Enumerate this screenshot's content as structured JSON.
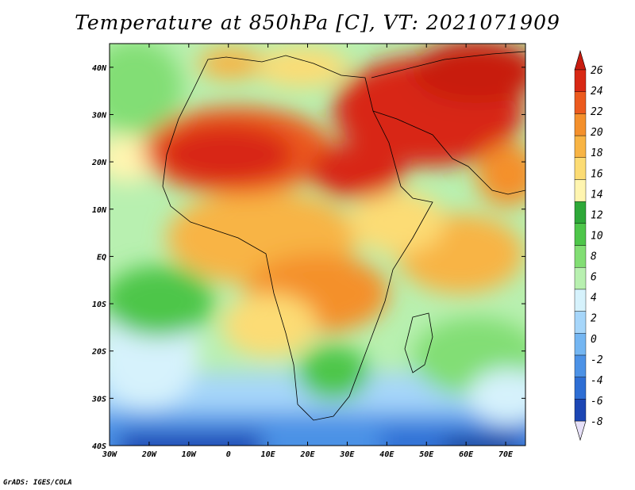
{
  "title": "Temperature at 850hPa [C], VT: 2021071909",
  "credit": "GrADS: IGES/COLA",
  "map": {
    "lon_range": [
      -30,
      75
    ],
    "lat_range": [
      -40,
      45
    ],
    "lon_ticks": [
      {
        "value": -30,
        "label": "30W"
      },
      {
        "value": -20,
        "label": "20W"
      },
      {
        "value": -10,
        "label": "10W"
      },
      {
        "value": 0,
        "label": "0"
      },
      {
        "value": 10,
        "label": "10E"
      },
      {
        "value": 20,
        "label": "20E"
      },
      {
        "value": 30,
        "label": "30E"
      },
      {
        "value": 40,
        "label": "40E"
      },
      {
        "value": 50,
        "label": "50E"
      },
      {
        "value": 60,
        "label": "60E"
      },
      {
        "value": 70,
        "label": "70E"
      }
    ],
    "lat_ticks": [
      {
        "value": 40,
        "label": "40N"
      },
      {
        "value": 30,
        "label": "30N"
      },
      {
        "value": 20,
        "label": "20N"
      },
      {
        "value": 10,
        "label": "10N"
      },
      {
        "value": 0,
        "label": "EQ"
      },
      {
        "value": -10,
        "label": "10S"
      },
      {
        "value": -20,
        "label": "20S"
      },
      {
        "value": -30,
        "label": "30S"
      },
      {
        "value": -40,
        "label": "40S"
      }
    ]
  },
  "colorbar": {
    "colors": [
      "#0d1a78",
      "#1c46b4",
      "#2e6ed4",
      "#4c92e6",
      "#74b6f2",
      "#a6d6fa",
      "#d6f2fc",
      "#b8f0b0",
      "#82de74",
      "#4ec64a",
      "#2ea838",
      "#fff5b0",
      "#fcdc74",
      "#f8b444",
      "#f4902c",
      "#ec5a1e",
      "#d82814",
      "#c81c10"
    ],
    "labels": [
      "26",
      "24",
      "22",
      "20",
      "18",
      "16",
      "14",
      "12",
      "10",
      "8",
      "6",
      "4",
      "2",
      "0",
      "-2",
      "-4",
      "-6",
      "-8"
    ]
  }
}
